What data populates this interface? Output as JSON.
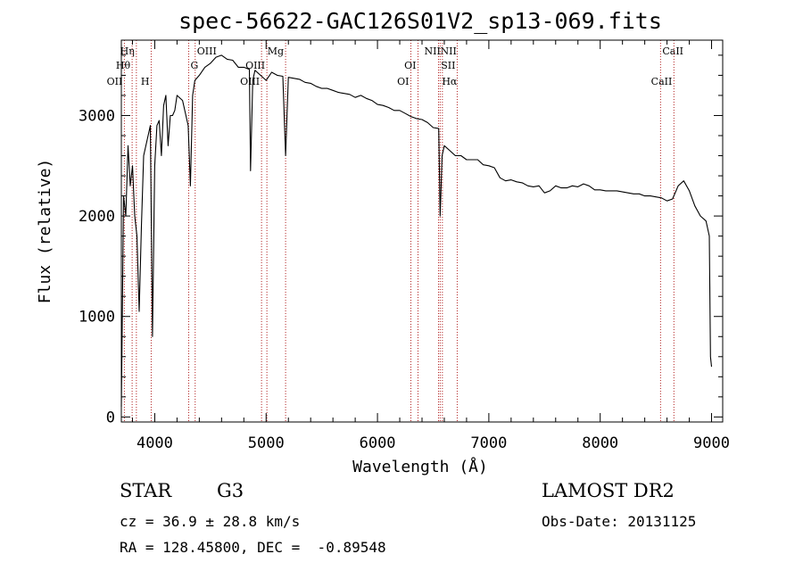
{
  "chart_data": {
    "type": "line",
    "title": "spec-56622-GAC126S01V2_sp13-069.fits",
    "xlabel": "Wavelength (Å)",
    "ylabel": "Flux (relative)",
    "xlim": [
      3700,
      9100
    ],
    "ylim": [
      -50,
      3750
    ],
    "xticks": [
      4000,
      5000,
      6000,
      7000,
      8000,
      9000
    ],
    "yticks": [
      0,
      1000,
      2000,
      3000
    ],
    "grid": false,
    "series": [
      {
        "x": [
          3700,
          3720,
          3740,
          3760,
          3780,
          3800,
          3820,
          3840,
          3860,
          3880,
          3900,
          3920,
          3940,
          3960,
          3980,
          4000,
          4020,
          4040,
          4060,
          4080,
          4100,
          4120,
          4140,
          4160,
          4180,
          4200,
          4250,
          4300,
          4320,
          4340,
          4360,
          4400,
          4450,
          4500,
          4550,
          4600,
          4650,
          4700,
          4750,
          4800,
          4850,
          4860,
          4880,
          4900,
          4950,
          5000,
          5050,
          5100,
          5150,
          5175,
          5200,
          5250,
          5300,
          5350,
          5400,
          5450,
          5500,
          5550,
          5600,
          5650,
          5700,
          5750,
          5800,
          5850,
          5900,
          5950,
          6000,
          6050,
          6100,
          6150,
          6200,
          6250,
          6300,
          6350,
          6400,
          6450,
          6500,
          6550,
          6563,
          6580,
          6600,
          6650,
          6700,
          6750,
          6800,
          6850,
          6900,
          6950,
          7000,
          7050,
          7100,
          7150,
          7200,
          7250,
          7300,
          7350,
          7400,
          7450,
          7500,
          7550,
          7600,
          7650,
          7700,
          7750,
          7800,
          7850,
          7900,
          7950,
          8000,
          8050,
          8100,
          8150,
          8200,
          8250,
          8300,
          8350,
          8400,
          8450,
          8500,
          8550,
          8600,
          8650,
          8700,
          8750,
          8800,
          8850,
          8900,
          8950,
          8980,
          8990,
          9000
        ],
        "y": [
          100,
          2200,
          2000,
          2700,
          2300,
          2500,
          2000,
          1800,
          1050,
          1900,
          2600,
          2700,
          2800,
          2900,
          800,
          2500,
          2900,
          2950,
          2600,
          3100,
          3200,
          2700,
          3000,
          3000,
          3050,
          3200,
          3150,
          2900,
          2300,
          3200,
          3350,
          3400,
          3480,
          3520,
          3580,
          3600,
          3560,
          3550,
          3480,
          3480,
          3460,
          2450,
          3350,
          3450,
          3400,
          3350,
          3430,
          3400,
          3390,
          2600,
          3380,
          3370,
          3360,
          3330,
          3320,
          3290,
          3270,
          3270,
          3250,
          3230,
          3220,
          3210,
          3180,
          3200,
          3170,
          3150,
          3110,
          3100,
          3080,
          3050,
          3050,
          3020,
          2990,
          2970,
          2960,
          2930,
          2880,
          2870,
          2000,
          2600,
          2700,
          2650,
          2600,
          2600,
          2560,
          2560,
          2560,
          2510,
          2500,
          2480,
          2380,
          2350,
          2360,
          2340,
          2330,
          2300,
          2290,
          2300,
          2230,
          2250,
          2300,
          2280,
          2280,
          2300,
          2290,
          2320,
          2300,
          2260,
          2260,
          2250,
          2250,
          2250,
          2240,
          2230,
          2220,
          2220,
          2200,
          2200,
          2190,
          2180,
          2150,
          2170,
          2300,
          2350,
          2250,
          2100,
          2000,
          1950,
          1800,
          600,
          500
        ]
      }
    ],
    "line_markers": [
      {
        "label": "OII",
        "x": 3727,
        "row": 3,
        "side": "right"
      },
      {
        "label": "Hθ",
        "x": 3797,
        "row": 2,
        "side": "right"
      },
      {
        "label": "Hη",
        "x": 3835,
        "row": 1,
        "side": "right"
      },
      {
        "label": "H",
        "x": 3968,
        "row": 3,
        "side": "right"
      },
      {
        "label": "G",
        "x": 4305,
        "row": 2,
        "side": "left"
      },
      {
        "label": "OIII",
        "x": 4363,
        "row": 1,
        "side": "left"
      },
      {
        "label": "OIII",
        "x": 4959,
        "row": 3,
        "side": "right"
      },
      {
        "label": "OIII",
        "x": 5007,
        "row": 2,
        "side": "right"
      },
      {
        "label": "Mg",
        "x": 5175,
        "row": 1,
        "side": "right"
      },
      {
        "label": "OI",
        "x": 6300,
        "row": 3,
        "side": "right"
      },
      {
        "label": "OI",
        "x": 6364,
        "row": 2,
        "side": "right"
      },
      {
        "label": "NII",
        "x": 6548,
        "row": 1,
        "side": "left"
      },
      {
        "label": "Hα",
        "x": 6563,
        "row": 3,
        "side": "left"
      },
      {
        "label": "NII",
        "x": 6583,
        "row": 1,
        "side": "right"
      },
      {
        "label": "SII",
        "x": 6716,
        "row": 2,
        "side": "right"
      },
      {
        "label": "CaII",
        "x": 8542,
        "row": 1,
        "side": "left"
      },
      {
        "label": "CaII",
        "x": 8662,
        "row": 3,
        "side": "right"
      }
    ],
    "colors": {
      "line": "#000000",
      "markers": "#b22222"
    }
  },
  "footer": {
    "class_label": "STAR",
    "subclass": "G3",
    "survey": "LAMOST DR2",
    "redshift": "cz = 36.9 ± 28.8 km/s",
    "obs_date": "Obs-Date: 20131125",
    "coords": "RA = 128.45800, DEC =  -0.89548"
  }
}
